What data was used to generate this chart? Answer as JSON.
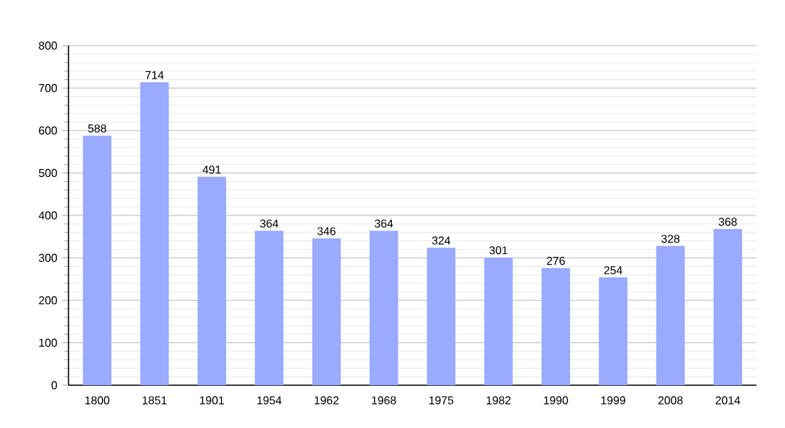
{
  "chart_data": {
    "type": "bar",
    "categories": [
      "1800",
      "1851",
      "1901",
      "1954",
      "1962",
      "1968",
      "1975",
      "1982",
      "1990",
      "1999",
      "2008",
      "2014"
    ],
    "values": [
      588,
      714,
      491,
      364,
      346,
      364,
      324,
      301,
      276,
      254,
      328,
      368
    ],
    "color": "#99aaff",
    "ylim": [
      0,
      800
    ],
    "yticks": [
      0,
      100,
      200,
      300,
      400,
      500,
      600,
      700,
      800
    ],
    "grid": "y",
    "data_labels": true
  }
}
